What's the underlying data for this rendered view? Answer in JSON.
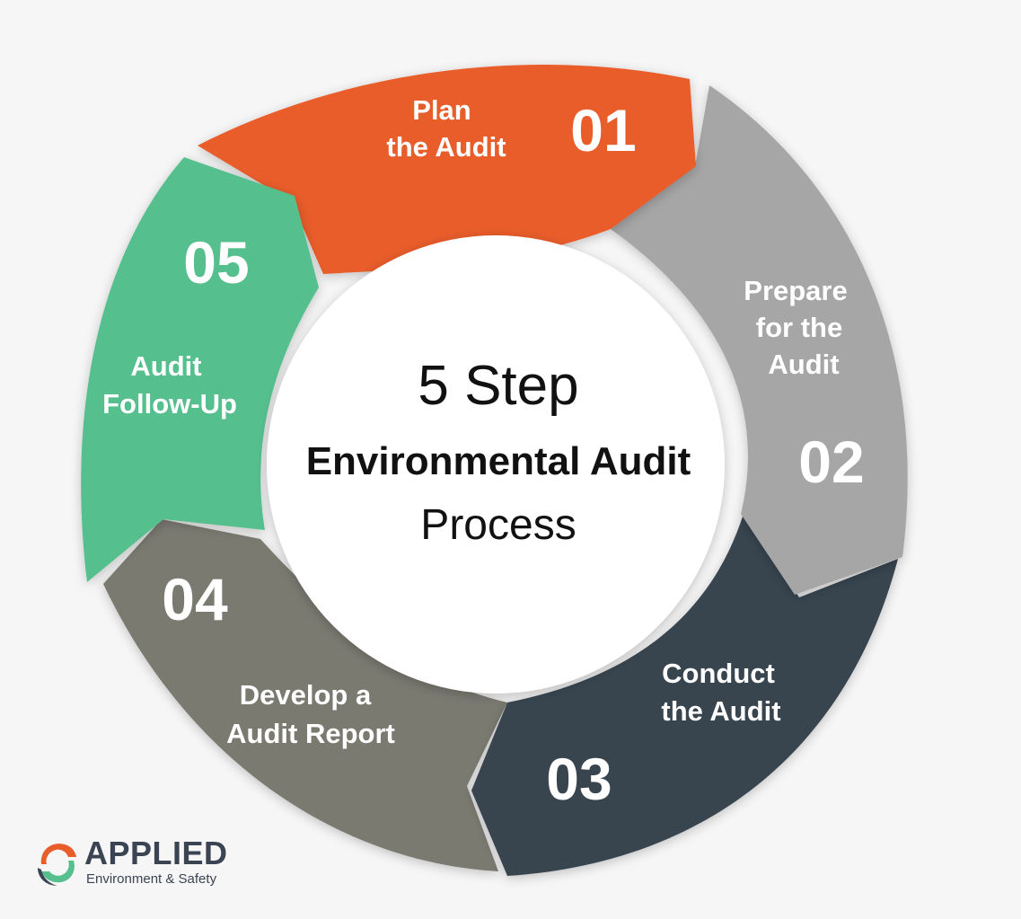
{
  "diagram": {
    "title_line1": "5 Step",
    "title_line2": "Environmental Audit",
    "title_line3": "Process",
    "steps": [
      {
        "number": "01",
        "label_lines": [
          "Plan",
          "the Audit"
        ],
        "color": "#e95d2b"
      },
      {
        "number": "02",
        "label_lines": [
          "Prepare",
          "for the",
          "Audit"
        ],
        "color": "#a6a6a6"
      },
      {
        "number": "03",
        "label_lines": [
          "Conduct",
          "the Audit"
        ],
        "color": "#37444f"
      },
      {
        "number": "04",
        "label_lines": [
          "Develop a",
          "Audit Report"
        ],
        "color": "#7a7a71"
      },
      {
        "number": "05",
        "label_lines": [
          "Audit",
          "Follow-Up"
        ],
        "color": "#55bf8e"
      }
    ]
  },
  "logo": {
    "title": "APPLIED",
    "subtitle": "Environment & Safety",
    "colors": {
      "orange": "#e95d2b",
      "green": "#55bf8e",
      "dark": "#3a4452"
    }
  }
}
